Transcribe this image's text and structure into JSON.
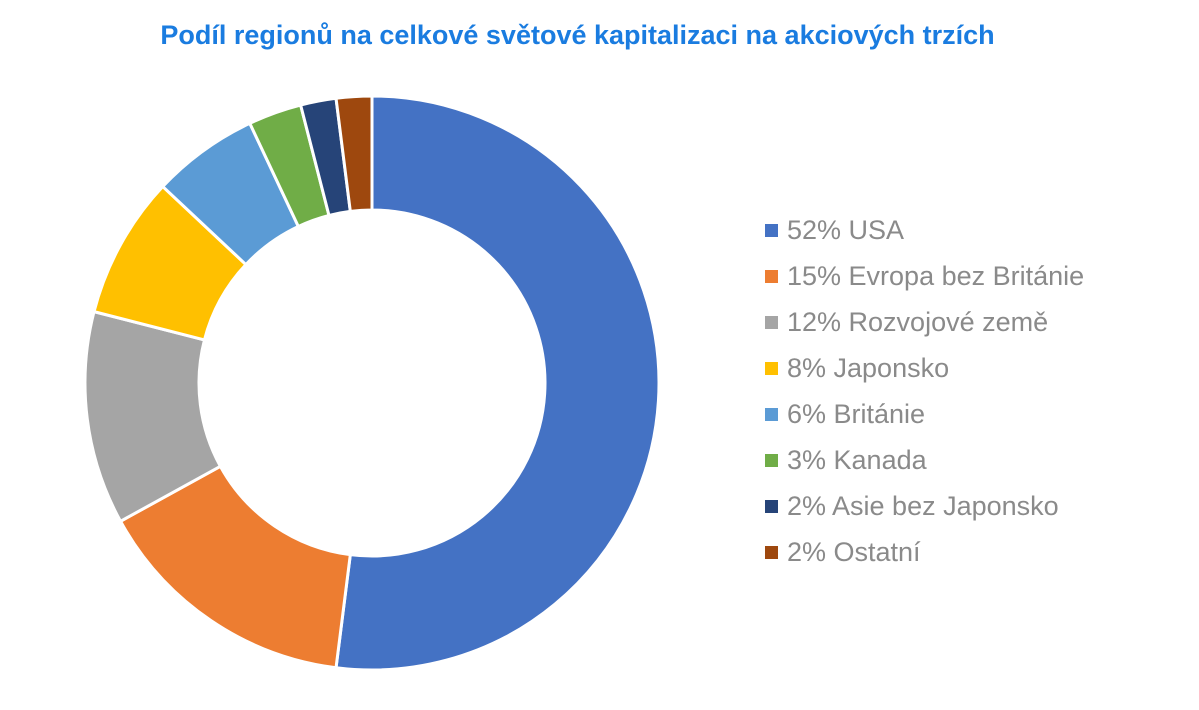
{
  "title": "Podíl regionů na celkové světové kapitalizaci na akciových trzích",
  "chart_data": {
    "type": "pie",
    "variant": "donut",
    "title": "Podíl regionů na celkové světové kapitalizaci na akciových trzích",
    "legend_position": "right",
    "slices": [
      {
        "label": "52% USA",
        "name": "USA",
        "value": 52,
        "color": "#4472C4"
      },
      {
        "label": "15% Evropa bez Británie",
        "name": "Evropa bez Británie",
        "value": 15,
        "color": "#ED7D31"
      },
      {
        "label": "12% Rozvojové země",
        "name": "Rozvojové země",
        "value": 12,
        "color": "#A5A5A5"
      },
      {
        "label": "8% Japonsko",
        "name": "Japonsko",
        "value": 8,
        "color": "#FFC000"
      },
      {
        "label": "6% Británie",
        "name": "Británie",
        "value": 6,
        "color": "#5B9BD5"
      },
      {
        "label": "3% Kanada",
        "name": "Kanada",
        "value": 3,
        "color": "#70AD47"
      },
      {
        "label": "2% Asie bez Japonsko",
        "name": "Asie bez Japonsko",
        "value": 2,
        "color": "#264478"
      },
      {
        "label": "2% Ostatní",
        "name": "Ostatní",
        "value": 2,
        "color": "#9E480E"
      }
    ]
  }
}
